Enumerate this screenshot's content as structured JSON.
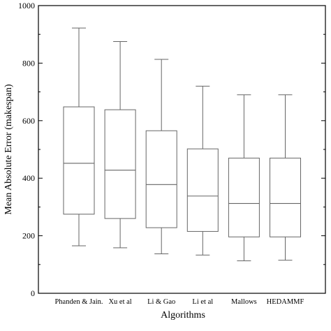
{
  "chart_data": {
    "type": "box",
    "title": "",
    "xlabel": "Algorithms",
    "ylabel": "Mean Absolute Error (makespan)",
    "ylim": [
      0,
      1000
    ],
    "yticks": [
      "0",
      "200",
      "400",
      "600",
      "800",
      "1000"
    ],
    "grid": false,
    "series": [
      {
        "category": "Phanden & Jain.",
        "min": 165,
        "q1": 275,
        "median": 452,
        "q3": 648,
        "max": 922
      },
      {
        "category": "Xu et al",
        "min": 158,
        "q1": 260,
        "median": 428,
        "q3": 638,
        "max": 875
      },
      {
        "category": "Li & Gao",
        "min": 137,
        "q1": 228,
        "median": 378,
        "q3": 565,
        "max": 813
      },
      {
        "category": "Li et al",
        "min": 133,
        "q1": 215,
        "median": 338,
        "q3": 502,
        "max": 720
      },
      {
        "category": "Mallows",
        "min": 113,
        "q1": 196,
        "median": 312,
        "q3": 470,
        "max": 690
      },
      {
        "category": "HEDAMMF",
        "min": 115,
        "q1": 196,
        "median": 312,
        "q3": 470,
        "max": 690
      }
    ]
  }
}
